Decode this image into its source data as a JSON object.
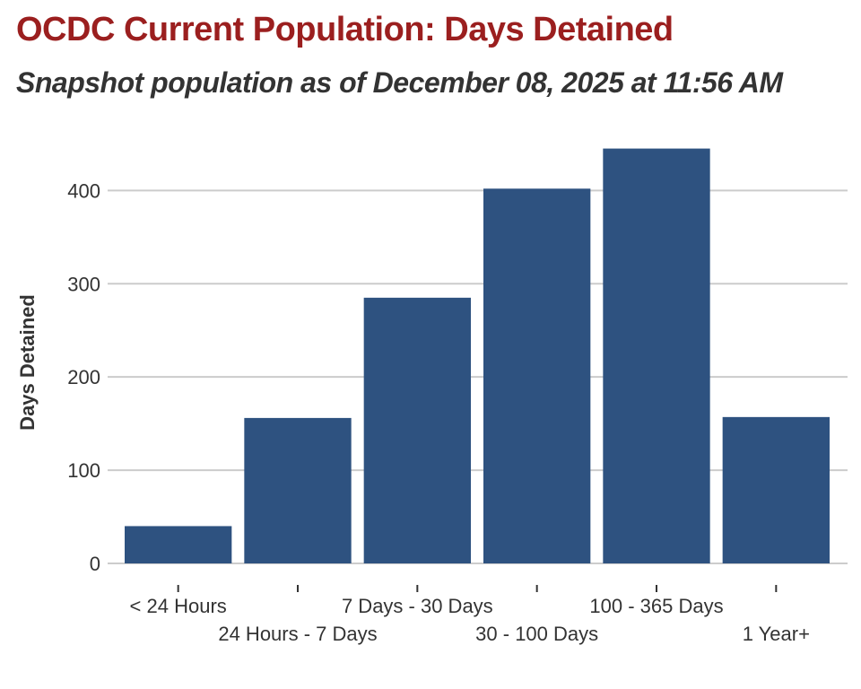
{
  "title": "OCDC Current Population: Days Detained",
  "subtitle": "Snapshot population as of December 08, 2025 at 11:56 AM",
  "colors": {
    "title": "#9b1f1f",
    "bar": "#2e5280",
    "grid": "#cccccc",
    "text": "#333333"
  },
  "chart_data": {
    "type": "bar",
    "title": "OCDC Current Population: Days Detained",
    "subtitle": "Snapshot population as of December 08, 2025 at 11:56 AM",
    "xlabel": "",
    "ylabel": "Days Detained",
    "categories": [
      "< 24 Hours",
      "24 Hours - 7 Days",
      "7 Days - 30 Days",
      "30 - 100 Days",
      "100 - 365 Days",
      "1 Year+"
    ],
    "values": [
      40,
      156,
      285,
      402,
      445,
      157
    ],
    "ylim": [
      0,
      460
    ],
    "yticks": [
      0,
      100,
      200,
      300,
      400
    ],
    "grid": true,
    "legend": "none"
  }
}
